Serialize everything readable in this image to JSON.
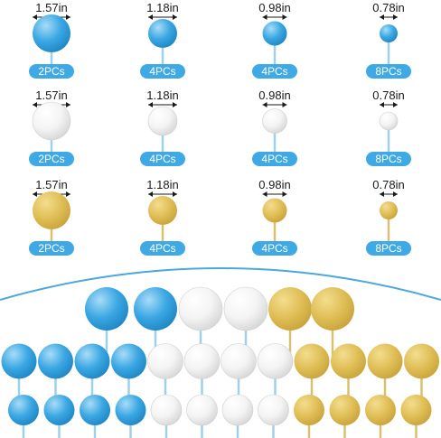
{
  "colors": {
    "blue": "#3aa7e3",
    "blue_light": "#a8dcf7",
    "white": "#f4f4f4",
    "white_shade": "#d6d6d6",
    "gold": "#e0bf57",
    "gold_light": "#f3dd8e",
    "badge": "#3fa9e6",
    "stick": "#9fd0ea",
    "divider": "#4aa8dc",
    "text": "#1a1a1a"
  },
  "grid": {
    "rows": [
      {
        "name": "blue-row",
        "color": "blue"
      },
      {
        "name": "white-row",
        "color": "white"
      },
      {
        "name": "gold-row",
        "color": "gold"
      }
    ],
    "columns": [
      {
        "size_label": "1.57in",
        "count_label": "2PCs"
      },
      {
        "size_label": "1.18in",
        "count_label": "4PCs"
      },
      {
        "size_label": "0.98in",
        "count_label": "4PCs"
      },
      {
        "size_label": "0.78in",
        "count_label": "8PCs"
      }
    ]
  },
  "bottom_rows": [
    [
      "blue",
      "blue",
      "white",
      "white",
      "gold",
      "gold"
    ],
    [
      "blue",
      "blue",
      "blue",
      "blue",
      "white",
      "white",
      "white",
      "white",
      "gold",
      "gold",
      "gold",
      "gold"
    ],
    [
      "blue",
      "blue",
      "blue",
      "blue",
      "white",
      "white",
      "white",
      "white",
      "gold",
      "gold",
      "gold",
      "gold"
    ]
  ]
}
